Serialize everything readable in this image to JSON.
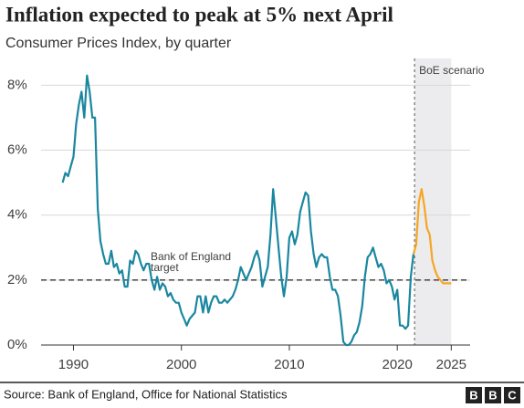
{
  "chart_data": {
    "type": "line",
    "title": "Inflation expected to peak at 5% next April",
    "subtitle": "Consumer Prices Index, by quarter",
    "source": "Source: Bank of England, Office for National Statistics",
    "logo": [
      "B",
      "B",
      "C"
    ],
    "target_label": [
      "Bank of England",
      "target"
    ],
    "target_value": 2,
    "scenario_label": "BoE scenario",
    "scenario_range": [
      2021.6,
      2025
    ],
    "xlim": [
      1987,
      2026.75
    ],
    "xticks": [
      1990,
      2000,
      2010,
      2020,
      2025
    ],
    "ylim": [
      0,
      8.6
    ],
    "yticks": [
      {
        "value": 0,
        "label": "0%"
      },
      {
        "value": 2,
        "label": "2%"
      },
      {
        "value": 4,
        "label": "4%"
      },
      {
        "value": 6,
        "label": "6%"
      },
      {
        "value": 8,
        "label": "8%"
      }
    ],
    "grid": true,
    "series": [
      {
        "color": "#1a87a0",
        "x": [
          1989,
          1989.25,
          1989.5,
          1989.75,
          1990,
          1990.25,
          1990.5,
          1990.75,
          1991,
          1991.25,
          1991.5,
          1991.75,
          1992,
          1992.25,
          1992.5,
          1992.75,
          1993,
          1993.25,
          1993.5,
          1993.75,
          1994,
          1994.25,
          1994.5,
          1994.75,
          1995,
          1995.25,
          1995.5,
          1995.75,
          1996,
          1996.25,
          1996.5,
          1996.75,
          1997,
          1997.25,
          1997.5,
          1997.75,
          1998,
          1998.25,
          1998.5,
          1998.75,
          1999,
          1999.25,
          1999.5,
          1999.75,
          2000,
          2000.25,
          2000.5,
          2000.75,
          2001,
          2001.25,
          2001.5,
          2001.75,
          2002,
          2002.25,
          2002.5,
          2002.75,
          2003,
          2003.25,
          2003.5,
          2003.75,
          2004,
          2004.25,
          2004.5,
          2004.75,
          2005,
          2005.25,
          2005.5,
          2005.75,
          2006,
          2006.25,
          2006.5,
          2006.75,
          2007,
          2007.25,
          2007.5,
          2007.75,
          2008,
          2008.25,
          2008.5,
          2008.75,
          2009,
          2009.25,
          2009.5,
          2009.75,
          2010,
          2010.25,
          2010.5,
          2010.75,
          2011,
          2011.25,
          2011.5,
          2011.75,
          2012,
          2012.25,
          2012.5,
          2012.75,
          2013,
          2013.25,
          2013.5,
          2013.75,
          2014,
          2014.25,
          2014.5,
          2014.75,
          2015,
          2015.25,
          2015.5,
          2015.75,
          2016,
          2016.25,
          2016.5,
          2016.75,
          2017,
          2017.25,
          2017.5,
          2017.75,
          2018,
          2018.25,
          2018.5,
          2018.75,
          2019,
          2019.25,
          2019.5,
          2019.75,
          2020,
          2020.25,
          2020.5,
          2020.75,
          2021,
          2021.25,
          2021.5
        ],
        "values": [
          5.0,
          5.3,
          5.2,
          5.5,
          5.8,
          6.8,
          7.4,
          7.8,
          7.0,
          8.3,
          7.8,
          7.0,
          7.0,
          4.2,
          3.2,
          2.8,
          2.5,
          2.5,
          2.9,
          2.4,
          2.5,
          2.2,
          2.3,
          1.8,
          1.8,
          2.6,
          2.5,
          2.9,
          2.8,
          2.5,
          2.3,
          2.5,
          2.5,
          2.0,
          1.7,
          2.1,
          1.7,
          1.9,
          1.8,
          1.5,
          1.6,
          1.4,
          1.3,
          1.3,
          1.0,
          0.8,
          0.6,
          0.8,
          0.9,
          1.0,
          1.5,
          1.5,
          1.0,
          1.5,
          1.0,
          1.3,
          1.5,
          1.5,
          1.3,
          1.3,
          1.4,
          1.3,
          1.4,
          1.5,
          1.7,
          2.0,
          2.4,
          2.2,
          2.0,
          2.2,
          2.4,
          2.7,
          2.9,
          2.6,
          1.8,
          2.1,
          2.4,
          3.4,
          4.8,
          3.9,
          3.0,
          2.1,
          1.5,
          2.1,
          3.3,
          3.5,
          3.1,
          3.4,
          4.1,
          4.4,
          4.7,
          4.6,
          3.5,
          2.8,
          2.4,
          2.7,
          2.8,
          2.7,
          2.7,
          2.1,
          1.7,
          1.7,
          1.5,
          0.9,
          0.1,
          0.0,
          0.0,
          0.1,
          0.3,
          0.4,
          0.7,
          1.2,
          2.1,
          2.7,
          2.8,
          3.0,
          2.7,
          2.4,
          2.5,
          2.3,
          1.9,
          2.0,
          1.8,
          1.4,
          1.7,
          0.6,
          0.6,
          0.5,
          0.6,
          2.1,
          2.8
        ]
      },
      {
        "color": "#f5a623",
        "x": [
          2021.5,
          2021.75,
          2022,
          2022.25,
          2022.5,
          2022.75,
          2023,
          2023.25,
          2023.5,
          2023.75,
          2024,
          2024.25,
          2024.5,
          2024.75,
          2025
        ],
        "values": [
          2.8,
          3.1,
          4.4,
          4.8,
          4.3,
          3.6,
          3.4,
          2.6,
          2.3,
          2.1,
          2.0,
          1.9,
          1.9,
          1.9,
          1.9
        ]
      }
    ]
  }
}
